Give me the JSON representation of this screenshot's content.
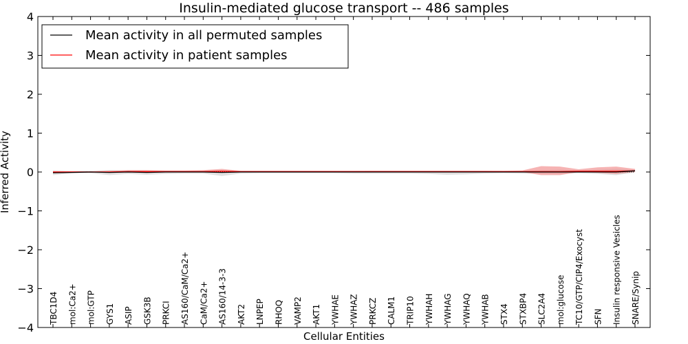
{
  "chart_data": {
    "type": "line",
    "title": "Insulin-mediated glucose transport -- 486 samples",
    "xlabel": "Cellular Entities",
    "ylabel": "Inferred Activity",
    "ylim": [
      -4,
      4
    ],
    "yticks": [
      -4,
      -3,
      -2,
      -1,
      0,
      1,
      2,
      3,
      4
    ],
    "ytick_labels": [
      "−4",
      "−3",
      "−2",
      "−1",
      "0",
      "1",
      "2",
      "3",
      "4"
    ],
    "grid": false,
    "legend_position": "top-left",
    "categories": [
      "TBC1D4",
      "mol:Ca2+",
      "mol:GTP",
      "GYS1",
      "ASIP",
      "GSK3B",
      "PRKCI",
      "AS160/CaM/Ca2+",
      "CaM/Ca2+",
      "AS160/14-3-3",
      "AKT2",
      "LNPEP",
      "RHOQ",
      "VAMP2",
      "AKT1",
      "YWHAE",
      "YWHAZ",
      "PRKCZ",
      "CALM1",
      "TRIP10",
      "YWHAH",
      "YWHAG",
      "YWHAQ",
      "YWHAB",
      "STX4",
      "STXBP4",
      "SLC2A4",
      "mol:glucose",
      "TC10/GTP/CIP4/Exocyst",
      "SFN",
      "Insulin responsive Vesicles",
      "SNARE/Synip"
    ],
    "series": [
      {
        "name": "Mean activity in all permuted samples",
        "color": "#000000",
        "values": [
          -0.02,
          -0.01,
          0.0,
          -0.01,
          0.0,
          -0.01,
          0.0,
          0.0,
          0.0,
          -0.01,
          0.0,
          0.0,
          0.0,
          0.0,
          0.0,
          0.0,
          0.0,
          0.0,
          0.0,
          0.0,
          0.0,
          0.0,
          0.0,
          0.0,
          0.0,
          0.0,
          0.0,
          0.0,
          0.0,
          0.0,
          0.0,
          0.03
        ],
        "band_lower": [
          -0.08,
          -0.03,
          -0.03,
          -0.08,
          -0.05,
          -0.07,
          -0.05,
          -0.04,
          -0.04,
          -0.1,
          -0.04,
          -0.03,
          -0.03,
          -0.03,
          -0.03,
          -0.03,
          -0.04,
          -0.04,
          -0.04,
          -0.04,
          -0.05,
          -0.07,
          -0.06,
          -0.04,
          -0.03,
          -0.04,
          -0.05,
          -0.05,
          -0.03,
          -0.05,
          -0.08,
          -0.01
        ],
        "band_upper": [
          0.04,
          0.02,
          0.02,
          0.05,
          0.04,
          0.04,
          0.03,
          0.03,
          0.03,
          0.05,
          0.02,
          0.02,
          0.02,
          0.02,
          0.02,
          0.02,
          0.02,
          0.03,
          0.03,
          0.03,
          0.03,
          0.03,
          0.03,
          0.03,
          0.02,
          0.03,
          0.05,
          0.06,
          0.04,
          0.06,
          0.08,
          0.06
        ],
        "band_color": "#cccccc"
      },
      {
        "name": "Mean activity in patient samples",
        "color": "#ff0000",
        "values": [
          0.0,
          0.0,
          0.0,
          0.0,
          0.01,
          0.01,
          0.01,
          0.01,
          0.01,
          0.02,
          0.01,
          0.01,
          0.01,
          0.01,
          0.01,
          0.01,
          0.01,
          0.01,
          0.01,
          0.01,
          0.01,
          0.01,
          0.01,
          0.01,
          0.01,
          0.01,
          0.01,
          0.01,
          0.02,
          0.02,
          0.02,
          0.03
        ],
        "band_lower": [
          -0.01,
          -0.01,
          -0.01,
          -0.01,
          -0.01,
          -0.01,
          -0.01,
          -0.01,
          -0.01,
          -0.01,
          0.0,
          0.0,
          0.0,
          0.0,
          0.0,
          0.0,
          0.0,
          0.0,
          0.0,
          0.0,
          0.0,
          0.0,
          0.0,
          0.0,
          0.0,
          0.0,
          -0.08,
          -0.08,
          0.0,
          -0.02,
          -0.05,
          0.0
        ],
        "band_upper": [
          0.02,
          0.02,
          0.02,
          0.03,
          0.05,
          0.05,
          0.04,
          0.04,
          0.05,
          0.08,
          0.03,
          0.03,
          0.03,
          0.03,
          0.03,
          0.03,
          0.03,
          0.03,
          0.03,
          0.03,
          0.03,
          0.03,
          0.03,
          0.03,
          0.03,
          0.04,
          0.15,
          0.14,
          0.07,
          0.12,
          0.14,
          0.08
        ],
        "band_color": "#f08080"
      }
    ]
  }
}
